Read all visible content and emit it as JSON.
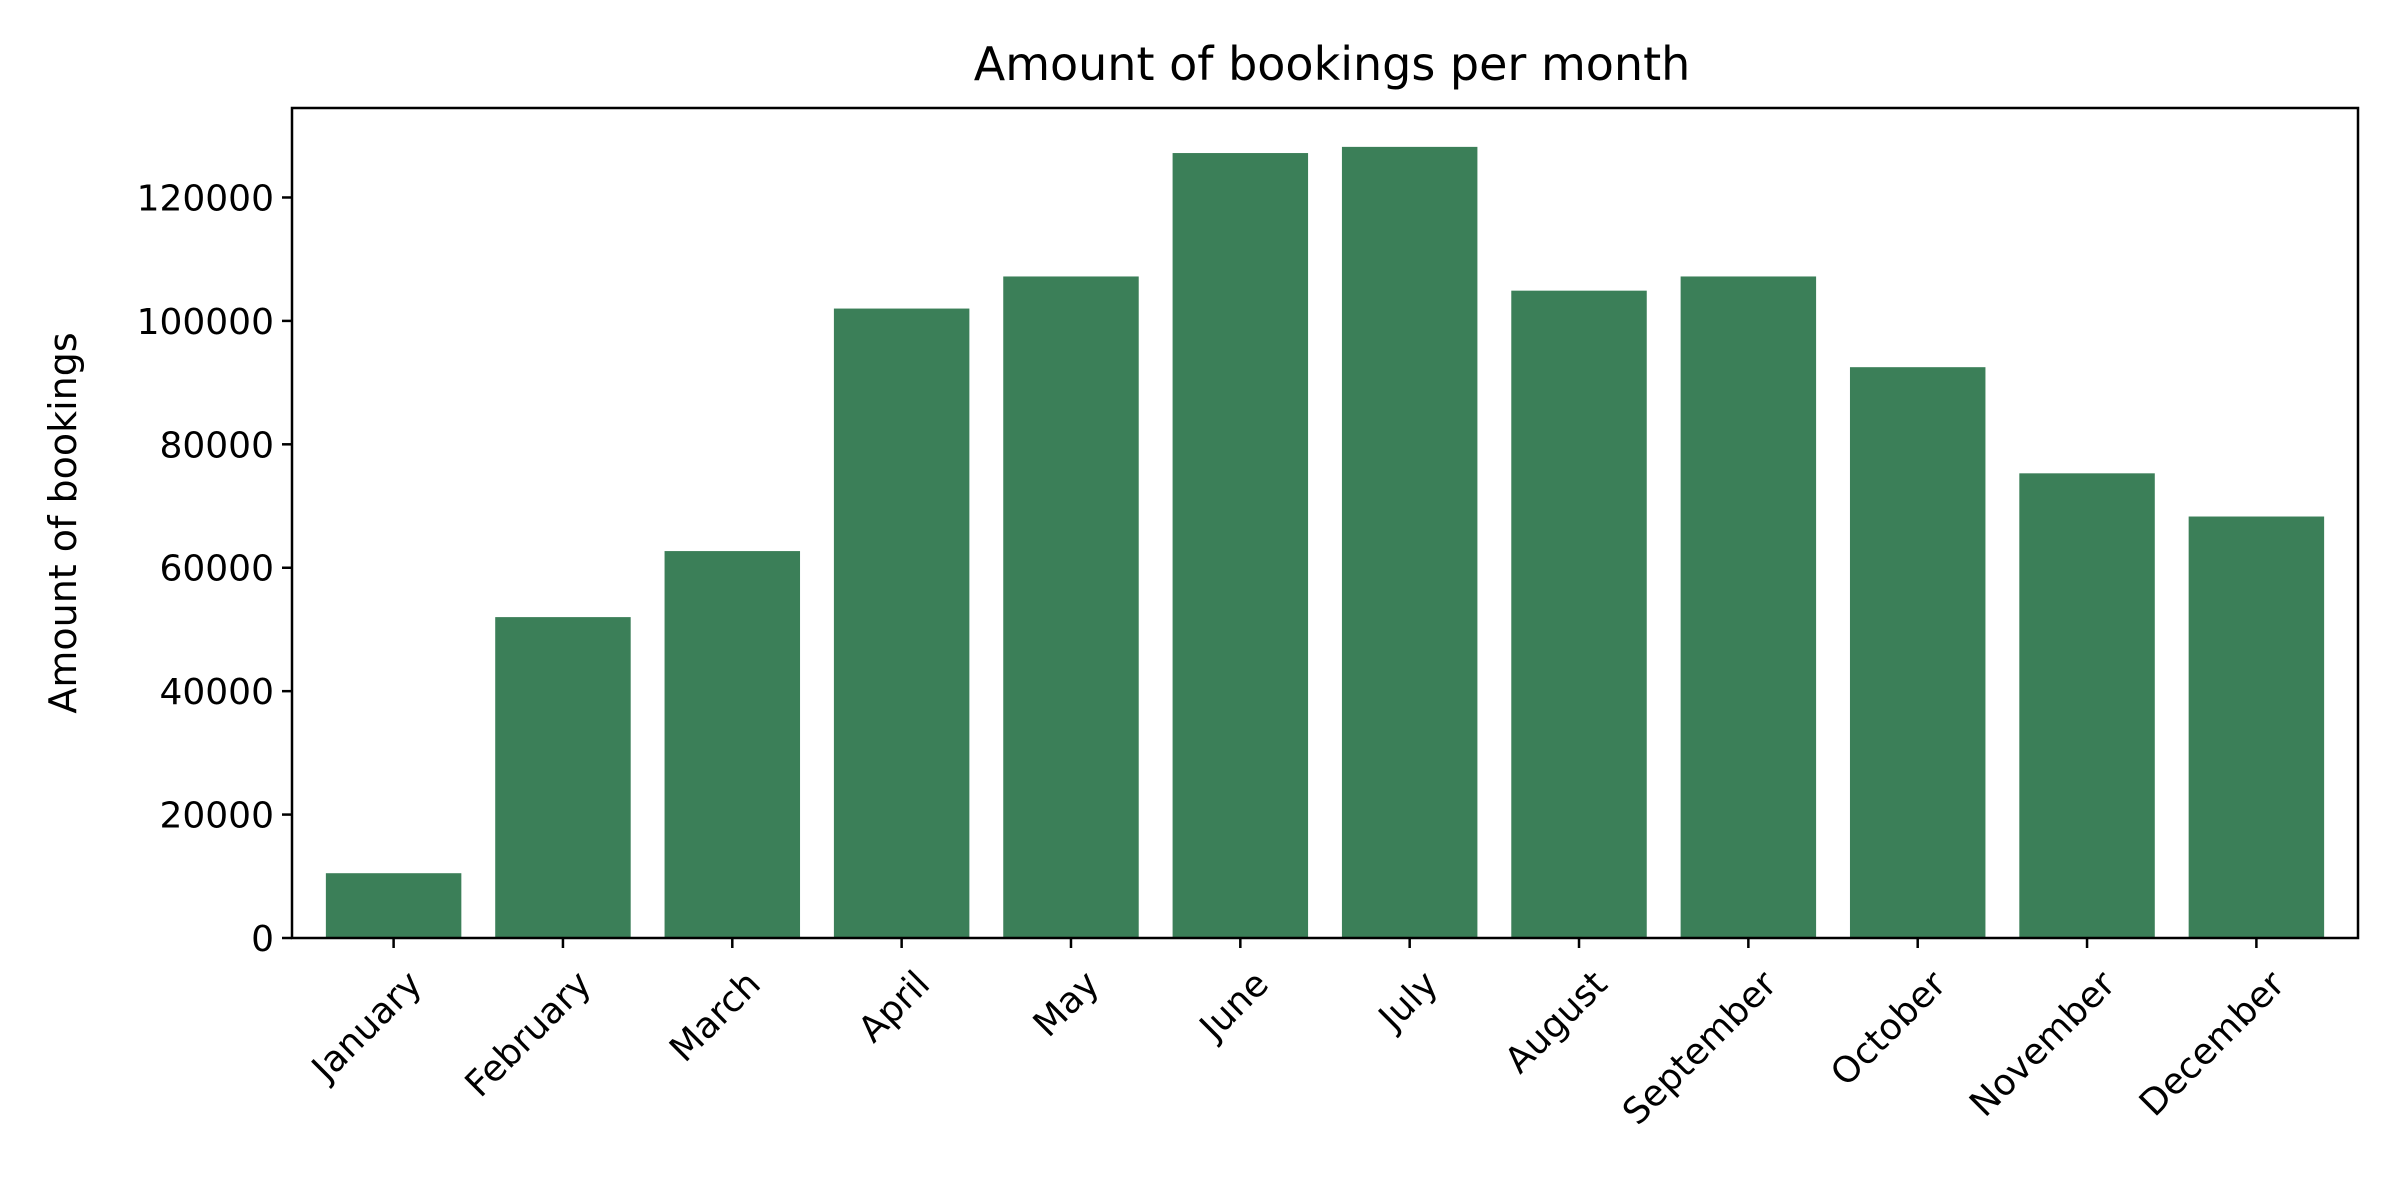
{
  "chart_data": {
    "type": "bar",
    "title": "Amount of bookings per month",
    "xlabel": "",
    "ylabel": "Amount of bookings",
    "categories": [
      "January",
      "February",
      "March",
      "April",
      "May",
      "June",
      "July",
      "August",
      "September",
      "October",
      "November",
      "December"
    ],
    "values": [
      10500,
      52000,
      62700,
      102000,
      107200,
      127200,
      128200,
      104900,
      107200,
      92500,
      75300,
      68300
    ],
    "ylim": [
      0,
      134500
    ],
    "yticks": [
      0,
      20000,
      40000,
      60000,
      80000,
      100000,
      120000
    ],
    "ytick_labels": [
      "0",
      "20000",
      "40000",
      "60000",
      "80000",
      "100000",
      "120000"
    ],
    "grid": false,
    "bar_color": "#3b7f58"
  }
}
